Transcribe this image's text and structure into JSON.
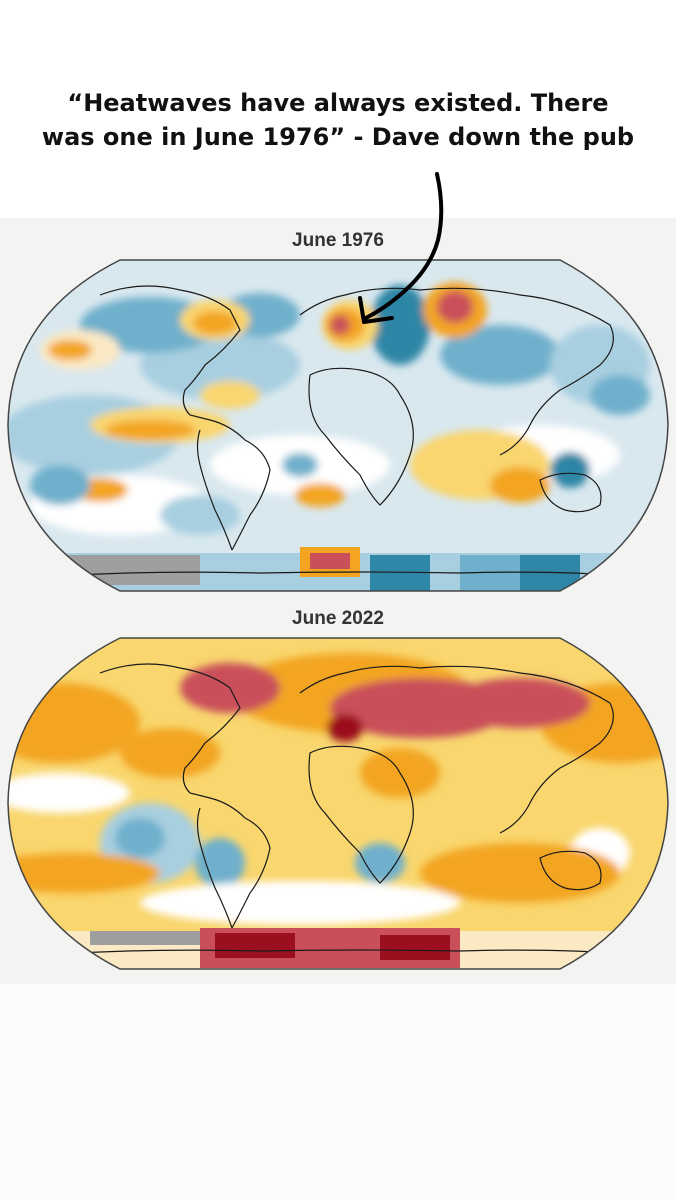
{
  "caption": {
    "line1": "“Heatwaves have always existed. There",
    "line2": "was one in June 1976” - Dave down the pub"
  },
  "maps": [
    {
      "title": "June 1976"
    },
    {
      "title": "June 2022"
    }
  ],
  "palette": {
    "ocean_base": "#d9e8ef",
    "light_blue": "#a8cfe0",
    "mid_blue": "#6fb0cc",
    "dark_blue": "#2f86a6",
    "white": "#ffffff",
    "cream": "#fbe9c4",
    "yellow": "#f9d66e",
    "orange": "#f3a521",
    "red": "#c9505a",
    "dark_red": "#9b0f1f",
    "grey": "#9e9e9e",
    "coast": "#1a1a1a",
    "arrow": "#000000"
  }
}
